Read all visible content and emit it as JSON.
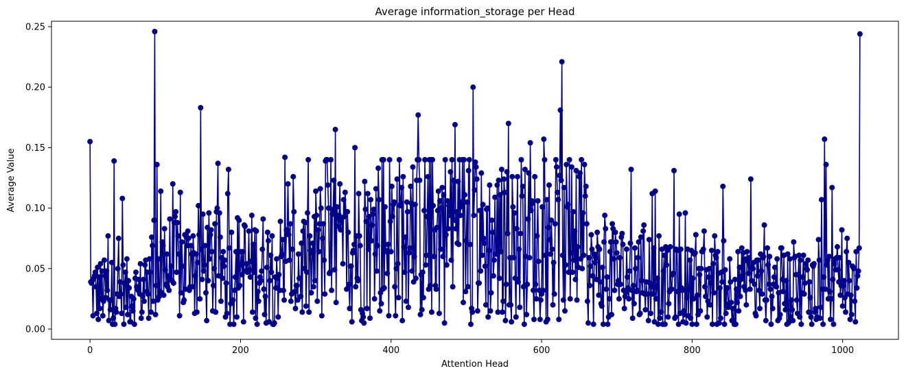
{
  "chart_data": {
    "type": "line",
    "title": "Average information_storage per Head",
    "xlabel": "Attention Head",
    "ylabel": "Average Value",
    "xlim": [
      -51.2,
      1074.2
    ],
    "ylim": [
      -0.0085,
      0.2545
    ],
    "xticks": [
      0,
      200,
      400,
      600,
      800,
      1000
    ],
    "yticks": [
      0.0,
      0.05,
      0.1,
      0.15,
      0.2,
      0.25
    ],
    "ytick_labels": [
      "0.00",
      "0.05",
      "0.10",
      "0.15",
      "0.20",
      "0.25"
    ],
    "grid": false,
    "markers": true,
    "color": "#00008b",
    "n_points": 1024,
    "anchors": [
      {
        "x": 0,
        "y": 0.155
      },
      {
        "x": 32,
        "y": 0.139
      },
      {
        "x": 43,
        "y": 0.108
      },
      {
        "x": 86,
        "y": 0.246
      },
      {
        "x": 89,
        "y": 0.136
      },
      {
        "x": 94,
        "y": 0.114
      },
      {
        "x": 147,
        "y": 0.183
      },
      {
        "x": 170,
        "y": 0.137
      },
      {
        "x": 259,
        "y": 0.142
      },
      {
        "x": 313,
        "y": 0.139
      },
      {
        "x": 326,
        "y": 0.165
      },
      {
        "x": 352,
        "y": 0.15
      },
      {
        "x": 436,
        "y": 0.177
      },
      {
        "x": 485,
        "y": 0.169
      },
      {
        "x": 509,
        "y": 0.2
      },
      {
        "x": 556,
        "y": 0.17
      },
      {
        "x": 585,
        "y": 0.154
      },
      {
        "x": 603,
        "y": 0.157
      },
      {
        "x": 625,
        "y": 0.181
      },
      {
        "x": 627,
        "y": 0.221
      },
      {
        "x": 776,
        "y": 0.131
      },
      {
        "x": 878,
        "y": 0.124
      },
      {
        "x": 976,
        "y": 0.157
      },
      {
        "x": 978,
        "y": 0.136
      },
      {
        "x": 1023,
        "y": 0.244
      }
    ]
  }
}
